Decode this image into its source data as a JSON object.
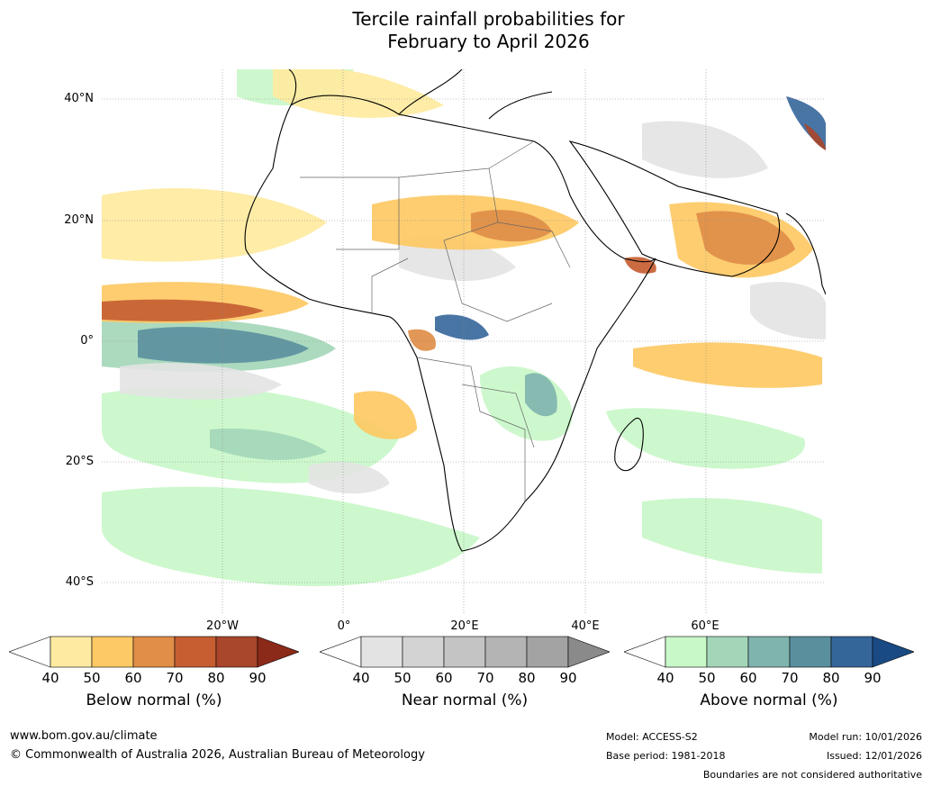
{
  "title": {
    "line1": "Tercile rainfall probabilities for",
    "line2": "February to April 2026"
  },
  "lat_labels": [
    "40°N",
    "20°N",
    "0°",
    "20°S",
    "40°S"
  ],
  "lon_labels": [
    "20°W",
    "0°",
    "20°E",
    "40°E",
    "60°E"
  ],
  "legends": [
    {
      "label": "Below normal (%)",
      "ticks": [
        "40",
        "50",
        "60",
        "70",
        "80",
        "90"
      ],
      "colors": [
        "#ffffff",
        "#feeaa0",
        "#fdc964",
        "#e08e48",
        "#c65e32",
        "#a8472b",
        "#8b2a18"
      ]
    },
    {
      "label": "Near normal (%)",
      "ticks": [
        "40",
        "50",
        "60",
        "70",
        "80",
        "90"
      ],
      "colors": [
        "#ffffff",
        "#e3e3e3",
        "#d3d3d3",
        "#c4c4c4",
        "#b4b4b4",
        "#a3a3a3",
        "#8a8a8a"
      ]
    },
    {
      "label": "Above normal (%)",
      "ticks": [
        "40",
        "50",
        "60",
        "70",
        "80",
        "90"
      ],
      "colors": [
        "#ffffff",
        "#c8f7c8",
        "#a3d6b8",
        "#7fb4ae",
        "#5a8f9e",
        "#35669a",
        "#1a4a84"
      ]
    }
  ],
  "footer": {
    "website": "www.bom.gov.au/climate",
    "copyright": "© Commonwealth of Australia 2026, Australian Bureau of Meteorology",
    "model": "Model: ACCESS-S2",
    "base_period": "Base period: 1981-2018",
    "model_run": "Model run: 10/01/2026",
    "issued": "Issued: 12/01/2026",
    "disclaimer": "Boundaries are not considered authoritative"
  }
}
